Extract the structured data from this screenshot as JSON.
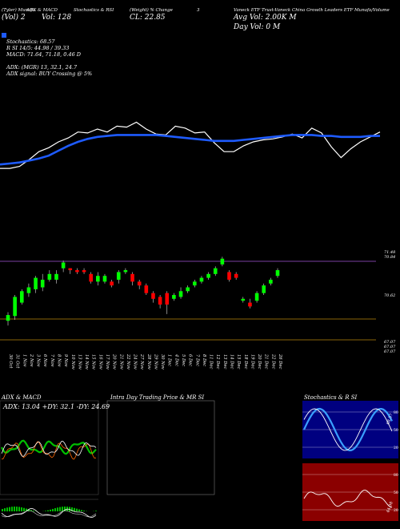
{
  "header": {
    "row1": [
      "(Tyler) Munafa",
      "ADX & MACD",
      "Stochastics & RSI",
      "(Weight) % Change",
      "3",
      "Vaneck ETF Trust-Vaneck China Growth Leaders ETF Munafa/Volume"
    ],
    "row2": [
      "(Vol) 2",
      "Vol: 128",
      "CL: 22.85",
      "Avg Vol: 2.00K M"
    ],
    "row3": "Day Vol: 0   M",
    "stoch": "Stochastics: 68.57",
    "rsi": "R   SI 14/5: 44.98 / 39.33",
    "macd": "MACD: 71.64, 71.18, 0.46  D",
    "adx": "ADX:                              (MGR) 13, 32.1, 24.7",
    "adx_signal": "ADX  signal:                           BUY Crossing @ 5%"
  },
  "right_axis_labels": [
    "71.48",
    "70.84",
    "70.62",
    "67.07",
    "67.07",
    "67.07"
  ],
  "date_labels": [
    "30 Oct",
    "31 Oct",
    "1 Nov",
    "2 Nov",
    "3 Nov",
    "6 Nov",
    "7 Nov",
    "8 Nov",
    "9 Nov",
    "10 Nov",
    "13 Nov",
    "14 Nov",
    "15 Nov",
    "16 Nov",
    "17 Nov",
    "20 Nov",
    "21 Nov",
    "22 Nov",
    "24 Nov",
    "27 Nov",
    "28 Nov",
    "29 Nov",
    "30 Nov",
    "1 Dec",
    "4 Dec",
    "5 Dec",
    "6 Dec",
    "7 Dec",
    "8 Dec",
    "11 Dec",
    "12 Dec",
    "13 Dec",
    "14 Dec",
    "15 Dec",
    "18 Dec",
    "19 Dec",
    "20 Dec",
    "21 Dec",
    "22 Dec",
    "26 Dec"
  ],
  "panels": {
    "adx_title": "ADX  & MACD",
    "adx_values": "ADX: 13.04  +DY: 32.1  -DY: 24.69",
    "intraday_title": "Intra  Day Trading Price  & MR               SI",
    "stoch_title": "Stochastics & R              SI",
    "stoch_levels": [
      "80",
      "50",
      "20"
    ],
    "rsi_levels": [
      "80",
      "50",
      "20"
    ],
    "stoch_value_label": "68.57",
    "rsi_value_label": "44.98"
  },
  "colors": {
    "up": "#00ff00",
    "down": "#ff0000",
    "ema": "#1e5bff",
    "price_line": "#ffffff",
    "rsi_bg": "#8b0000",
    "stoch_bg": "#000080"
  },
  "chart_data": [
    {
      "type": "line",
      "name": "price with moving average",
      "series": [
        {
          "name": "Price",
          "values": [
            63.9,
            63.9,
            64.1,
            64.8,
            65.6,
            66.0,
            66.6,
            67.0,
            67.6,
            67.5,
            67.9,
            67.6,
            68.2,
            68.1,
            68.6,
            67.9,
            67.4,
            67.3,
            68.2,
            68.0,
            67.5,
            67.6,
            66.5,
            65.6,
            65.6,
            66.2,
            66.6,
            66.8,
            66.9,
            67.1,
            67.4,
            67.0,
            68.0,
            67.5,
            66.1,
            65.0,
            65.9,
            66.6,
            67.1,
            67.6
          ]
        },
        {
          "name": "EMA",
          "values": [
            64.3,
            64.4,
            64.5,
            64.7,
            64.9,
            65.2,
            65.7,
            66.2,
            66.6,
            66.9,
            67.1,
            67.2,
            67.3,
            67.3,
            67.3,
            67.3,
            67.3,
            67.2,
            67.1,
            67.0,
            66.9,
            66.8,
            66.7,
            66.7,
            66.7,
            66.8,
            66.9,
            67.0,
            67.1,
            67.2,
            67.3,
            67.3,
            67.3,
            67.2,
            67.2,
            67.1,
            67.1,
            67.1,
            67.2,
            67.2
          ]
        }
      ]
    },
    {
      "type": "candlestick",
      "ylim": [
        66.9,
        71.6
      ],
      "candles": [
        {
          "o": 68.15,
          "c": 68.45,
          "h": 68.6,
          "l": 67.9
        },
        {
          "o": 68.4,
          "c": 69.4,
          "h": 69.5,
          "l": 68.2
        },
        {
          "o": 69.1,
          "c": 69.7,
          "h": 69.8,
          "l": 69.0
        },
        {
          "o": 69.6,
          "c": 69.9,
          "h": 70.1,
          "l": 69.4
        },
        {
          "o": 69.8,
          "c": 70.4,
          "h": 70.5,
          "l": 69.6
        },
        {
          "o": 69.9,
          "c": 70.3,
          "h": 70.6,
          "l": 69.7
        },
        {
          "o": 70.3,
          "c": 70.6,
          "h": 70.8,
          "l": 70.2
        },
        {
          "o": 70.3,
          "c": 70.6,
          "h": 70.8,
          "l": 70.1
        },
        {
          "o": 70.9,
          "c": 71.2,
          "h": 71.3,
          "l": 70.7
        },
        {
          "o": 70.9,
          "c": 70.8,
          "h": 70.9,
          "l": 70.6
        },
        {
          "o": 70.8,
          "c": 70.7,
          "h": 70.9,
          "l": 70.6
        },
        {
          "o": 70.8,
          "c": 70.7,
          "h": 70.9,
          "l": 70.6
        },
        {
          "o": 70.6,
          "c": 70.2,
          "h": 70.7,
          "l": 70.1
        },
        {
          "o": 70.2,
          "c": 70.5,
          "h": 70.7,
          "l": 70.0
        },
        {
          "o": 70.2,
          "c": 70.5,
          "h": 70.6,
          "l": 70.1
        },
        {
          "o": 70.2,
          "c": 70.0,
          "h": 70.3,
          "l": 69.9
        },
        {
          "o": 70.3,
          "c": 70.7,
          "h": 70.8,
          "l": 70.1
        },
        {
          "o": 70.7,
          "c": 70.8,
          "h": 70.9,
          "l": 70.6
        },
        {
          "o": 70.6,
          "c": 70.2,
          "h": 70.7,
          "l": 70.0
        },
        {
          "o": 70.2,
          "c": 70.0,
          "h": 70.3,
          "l": 69.8
        },
        {
          "o": 70.0,
          "c": 69.6,
          "h": 70.1,
          "l": 69.5
        },
        {
          "o": 69.6,
          "c": 69.3,
          "h": 69.7,
          "l": 69.1
        },
        {
          "o": 69.4,
          "c": 69.0,
          "h": 69.5,
          "l": 68.8
        },
        {
          "o": 69.6,
          "c": 69.0,
          "h": 69.7,
          "l": 68.5
        },
        {
          "o": 69.3,
          "c": 69.5,
          "h": 69.6,
          "l": 69.2
        },
        {
          "o": 69.4,
          "c": 69.7,
          "h": 69.9,
          "l": 69.3
        },
        {
          "o": 69.7,
          "c": 69.9,
          "h": 70.0,
          "l": 69.6
        },
        {
          "o": 70.0,
          "c": 70.2,
          "h": 70.3,
          "l": 69.9
        },
        {
          "o": 70.2,
          "c": 70.4,
          "h": 70.5,
          "l": 70.1
        },
        {
          "o": 70.4,
          "c": 70.6,
          "h": 70.7,
          "l": 70.3
        },
        {
          "o": 70.6,
          "c": 70.9,
          "h": 71.0,
          "l": 70.5
        },
        {
          "o": 71.1,
          "c": 71.4,
          "h": 71.5,
          "l": 71.0
        },
        {
          "o": 70.7,
          "c": 70.3,
          "h": 70.8,
          "l": 70.2
        },
        {
          "o": 70.6,
          "c": 70.4,
          "h": 70.7,
          "l": 70.3
        },
        {
          "o": 69.2,
          "c": 69.3,
          "h": 69.4,
          "l": 69.1
        },
        {
          "o": 69.1,
          "c": 68.9,
          "h": 69.3,
          "l": 68.8
        },
        {
          "o": 69.2,
          "c": 69.6,
          "h": 69.7,
          "l": 69.1
        },
        {
          "o": 69.6,
          "c": 70.0,
          "h": 70.1,
          "l": 69.5
        },
        {
          "o": 70.1,
          "c": 70.3,
          "h": 70.4,
          "l": 70.0
        },
        {
          "o": 70.5,
          "c": 70.8,
          "h": 70.9,
          "l": 70.4
        }
      ]
    }
  ]
}
